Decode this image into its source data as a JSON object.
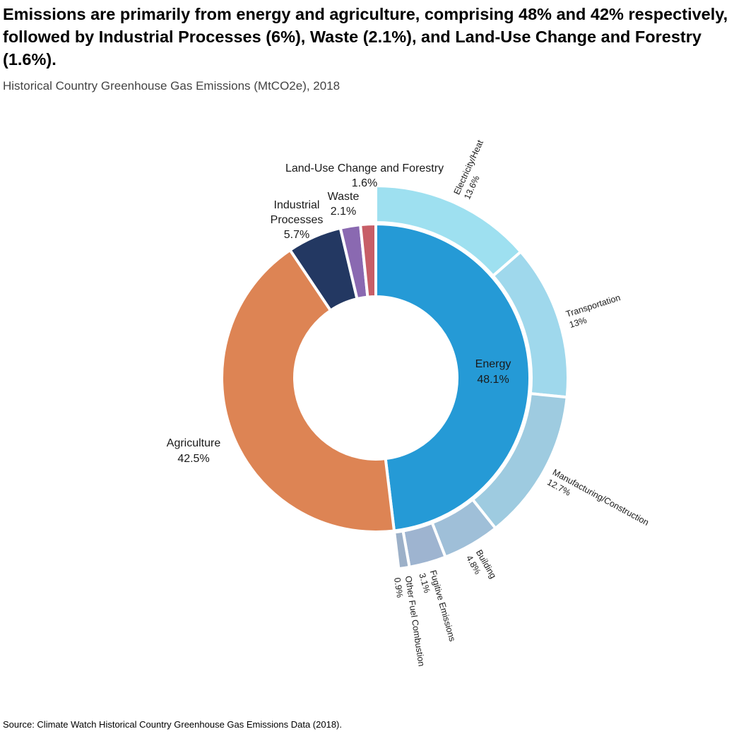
{
  "title": "Emissions are primarily from energy and agriculture, comprising 48% and 42% respectively, followed by Industrial Processes (6%), Waste (2.1%), and Land-Use Change and Forestry (1.6%).",
  "subtitle": "Historical Country Greenhouse Gas Emissions (MtCO2e), 2018",
  "source": "Source: Climate Watch Historical Country Greenhouse Gas Emissions Data (2018).",
  "chart_data": {
    "type": "pie",
    "style": "donut-sunburst",
    "inner": [
      {
        "name": "Energy",
        "value": 48.1,
        "label": "48.1%",
        "color": "#259ad6"
      },
      {
        "name": "Agriculture",
        "value": 42.5,
        "label": "42.5%",
        "color": "#dd8454"
      },
      {
        "name": "Industrial Processes",
        "value": 5.7,
        "label": "5.7%",
        "color": "#233862"
      },
      {
        "name": "Waste",
        "value": 2.1,
        "label": "2.1%",
        "color": "#8a69b1"
      },
      {
        "name": "Land-Use Change and Forestry",
        "value": 1.6,
        "label": "1.6%",
        "color": "#c75e67"
      }
    ],
    "outer": [
      {
        "name": "Electricity/Heat",
        "value": 13.6,
        "label": "13.6%",
        "color": "#9ee0f0"
      },
      {
        "name": "Transportation",
        "value": 13,
        "label": "13%",
        "color": "#9fd8ec"
      },
      {
        "name": "Manufacturing/Construction",
        "value": 12.7,
        "label": "12.7%",
        "color": "#9ecbe0"
      },
      {
        "name": "Building",
        "value": 4.8,
        "label": "4.8%",
        "color": "#9fbfd8"
      },
      {
        "name": "Fugitive Emissions",
        "value": 3.1,
        "label": "3.1%",
        "color": "#9eb4d0"
      },
      {
        "name": "Other Fuel Combustion",
        "value": 0.9,
        "label": "0.9%",
        "color": "#9cb0c8"
      }
    ]
  }
}
